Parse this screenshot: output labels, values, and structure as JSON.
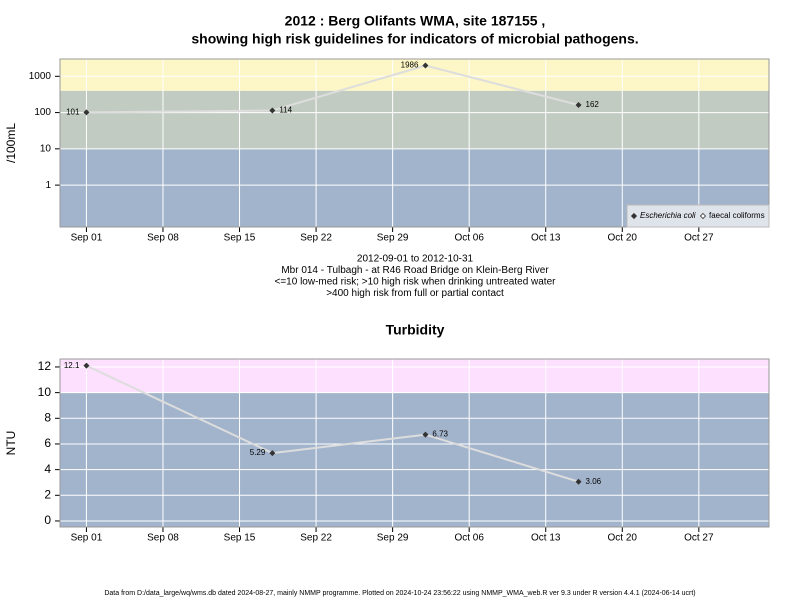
{
  "chart_data": [
    {
      "type": "line",
      "title": [
        "2012 : Berg Olifants WMA, site 187155 ,",
        "showing high risk guidelines for indicators of microbial pathogens."
      ],
      "ylabel": "/100mL",
      "log_scale": true,
      "x": [
        "2012-09-01",
        "2012-09-18",
        "2012-10-02",
        "2012-10-16"
      ],
      "series": [
        {
          "name": "Escherichia coli",
          "color": "#333333",
          "values": [
            101,
            114,
            1986,
            162
          ]
        },
        {
          "name": "faecal coliforms",
          "color": "#333333",
          "values": [
            null,
            null,
            null,
            null
          ]
        }
      ],
      "line_color": "#dddddd",
      "xlim": [
        "2012-08-29T14:00Z",
        "2012-11-02T10:00Z"
      ],
      "xticks": [
        {
          "value": "2012-09-01",
          "label": "Sep 01"
        },
        {
          "value": "2012-09-08",
          "label": "Sep 08"
        },
        {
          "value": "2012-09-15",
          "label": "Sep 15"
        },
        {
          "value": "2012-09-22",
          "label": "Sep 22"
        },
        {
          "value": "2012-09-29",
          "label": "Sep 29"
        },
        {
          "value": "2012-10-06",
          "label": "Oct 06"
        },
        {
          "value": "2012-10-13",
          "label": "Oct 13"
        },
        {
          "value": "2012-10-20",
          "label": "Oct 20"
        },
        {
          "value": "2012-10-27",
          "label": "Oct 27"
        }
      ],
      "ylim": [
        0.07,
        3000
      ],
      "yticks": [
        1,
        10,
        100,
        1000
      ],
      "thresholds": [
        10,
        400
      ],
      "band_colors": [
        "#a2b4cc",
        "#c2cbc2",
        "#fdf6c6"
      ],
      "grid": true,
      "legend": "bottom right",
      "caption": [
        "2012-09-01 to 2012-10-31",
        "Mbr 014 - Tulbagh - at R46 Road Bridge on Klein-Berg River",
        "<=10 low-med risk; >10 high risk when drinking untreated water",
        ">400 high risk from full or partial contact"
      ]
    },
    {
      "type": "line",
      "title": [
        "Turbidity"
      ],
      "ylabel": "NTU",
      "log_scale": false,
      "x": [
        "2012-09-01",
        "2012-09-18",
        "2012-10-02",
        "2012-10-16"
      ],
      "series": [
        {
          "name": "Turbidity",
          "color": "#333333",
          "values": [
            12.1,
            5.29,
            6.73,
            3.06
          ]
        }
      ],
      "line_color": "#dddddd",
      "xlim": [
        "2012-08-29T14:00Z",
        "2012-11-02T10:00Z"
      ],
      "xticks": [
        {
          "value": "2012-09-01",
          "label": "Sep 01"
        },
        {
          "value": "2012-09-08",
          "label": "Sep 08"
        },
        {
          "value": "2012-09-15",
          "label": "Sep 15"
        },
        {
          "value": "2012-09-22",
          "label": "Sep 22"
        },
        {
          "value": "2012-09-29",
          "label": "Sep 29"
        },
        {
          "value": "2012-10-06",
          "label": "Oct 06"
        },
        {
          "value": "2012-10-13",
          "label": "Oct 13"
        },
        {
          "value": "2012-10-20",
          "label": "Oct 20"
        },
        {
          "value": "2012-10-27",
          "label": "Oct 27"
        }
      ],
      "ylim": [
        -0.47,
        12.62
      ],
      "yticks": [
        0,
        2,
        4,
        6,
        8,
        10,
        12
      ],
      "thresholds": [
        10
      ],
      "band_colors": [
        "#a2b4cc",
        "#fde0fd"
      ],
      "grid": true
    }
  ],
  "footer": "Data from D:/data_large/wq/wms.db dated 2024-08-27, mainly NMMP programme. Plotted on 2024-10-24 23:56:22 using NMMP_WMA_web.R ver 9.3 under R version 4.4.1 (2024-06-14 ucrt)"
}
